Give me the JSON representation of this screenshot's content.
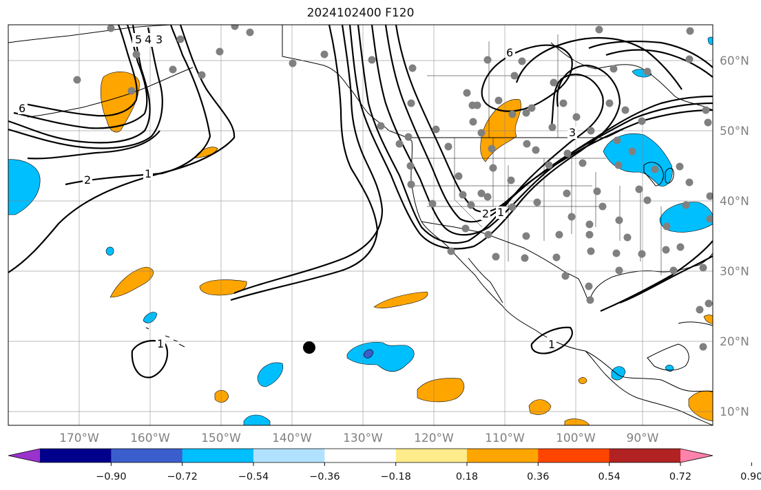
{
  "title": "2024102400 F120",
  "map": {
    "projection": "plate-carree",
    "lon_range": [
      -179.5,
      -80.5
    ],
    "lat_range": [
      8,
      65
    ],
    "gridlines": true,
    "lon_labels": [
      "170°W",
      "160°W",
      "150°W",
      "140°W",
      "130°W",
      "120°W",
      "110°W",
      "100°W",
      "90°W"
    ],
    "lat_labels": [
      "10°N",
      "20°N",
      "30°N",
      "40°N",
      "50°N",
      "60°N"
    ],
    "contour_labels": [
      "5",
      "4",
      "3",
      "6",
      "2",
      "1",
      "6",
      "3",
      "2",
      "1",
      "1",
      "1"
    ],
    "marker": {
      "lon": -137,
      "lat": 19
    }
  },
  "colorbar": {
    "ticks": [
      "−0.90",
      "−0.72",
      "−0.54",
      "−0.36",
      "−0.18",
      "0.18",
      "0.36",
      "0.54",
      "0.72",
      "0.90"
    ],
    "colors": [
      "#9a32cd",
      "#00008b",
      "#3a5fcd",
      "#00bfff",
      "#b0e2ff",
      "#ffffff",
      "#ffec8b",
      "#ffa500",
      "#ff4500",
      "#b22222",
      "#ff82ab"
    ],
    "extend": "both"
  }
}
